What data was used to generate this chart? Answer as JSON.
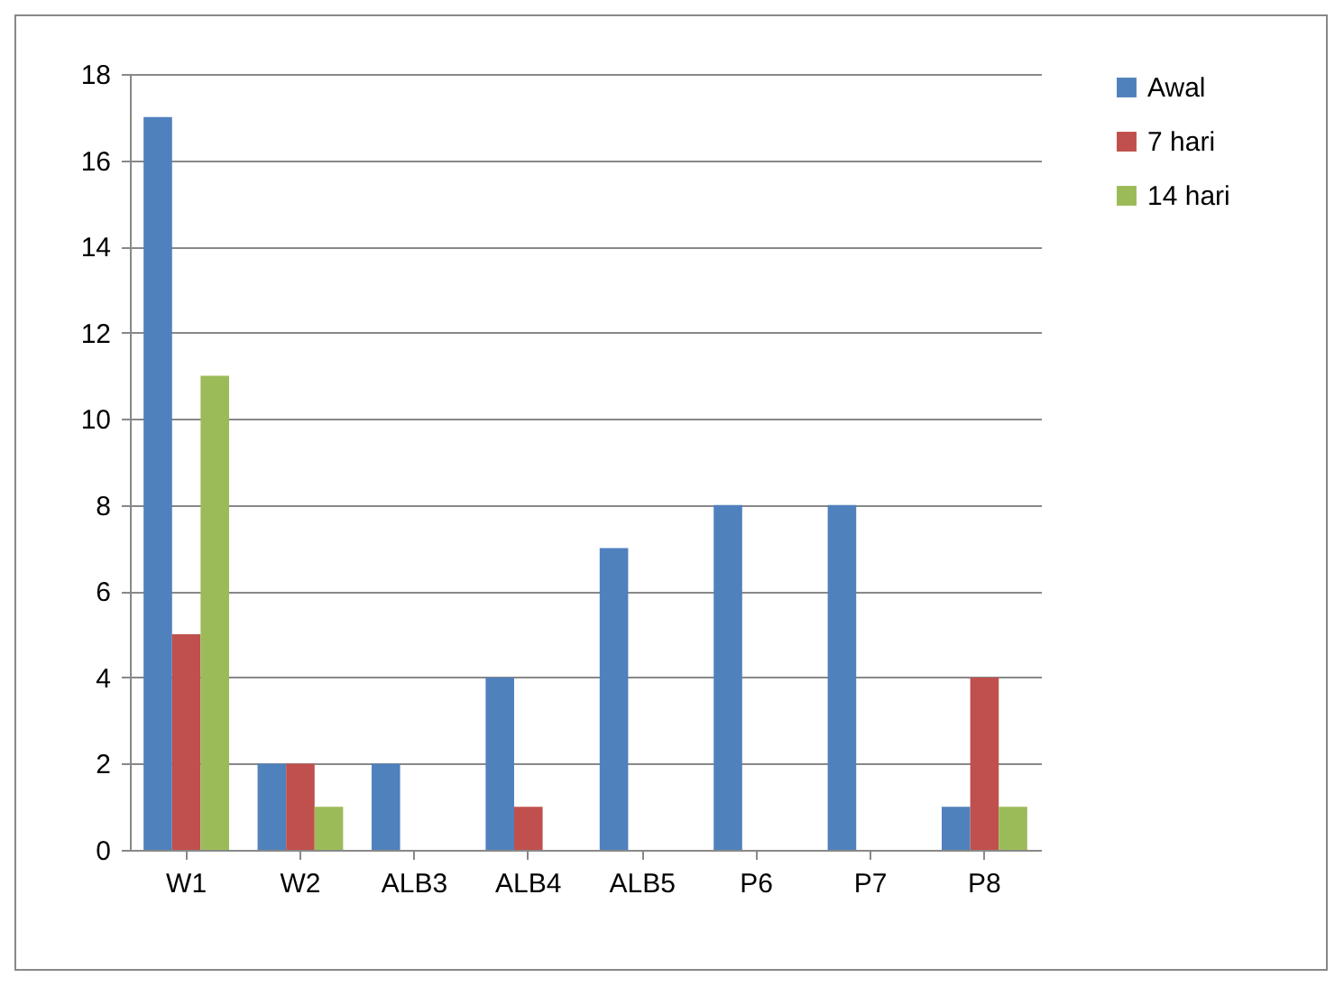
{
  "chart_data": {
    "type": "bar",
    "categories": [
      "W1",
      "W2",
      "ALB3",
      "ALB4",
      "ALB5",
      "P6",
      "P7",
      "P8"
    ],
    "series": [
      {
        "name": "Awal",
        "color": "#4f81bd",
        "values": [
          17,
          2,
          2,
          4,
          7,
          8,
          8,
          1
        ]
      },
      {
        "name": "7 hari",
        "color": "#c0504d",
        "values": [
          5,
          2,
          0,
          1,
          0,
          0,
          0,
          4
        ]
      },
      {
        "name": "14 hari",
        "color": "#9bbb59",
        "values": [
          11,
          1,
          0,
          0,
          0,
          0,
          0,
          1
        ]
      }
    ],
    "ylim": [
      0,
      18
    ],
    "yticks": [
      0,
      2,
      4,
      6,
      8,
      10,
      12,
      14,
      16,
      18
    ],
    "grid": "y",
    "legend": "right"
  }
}
